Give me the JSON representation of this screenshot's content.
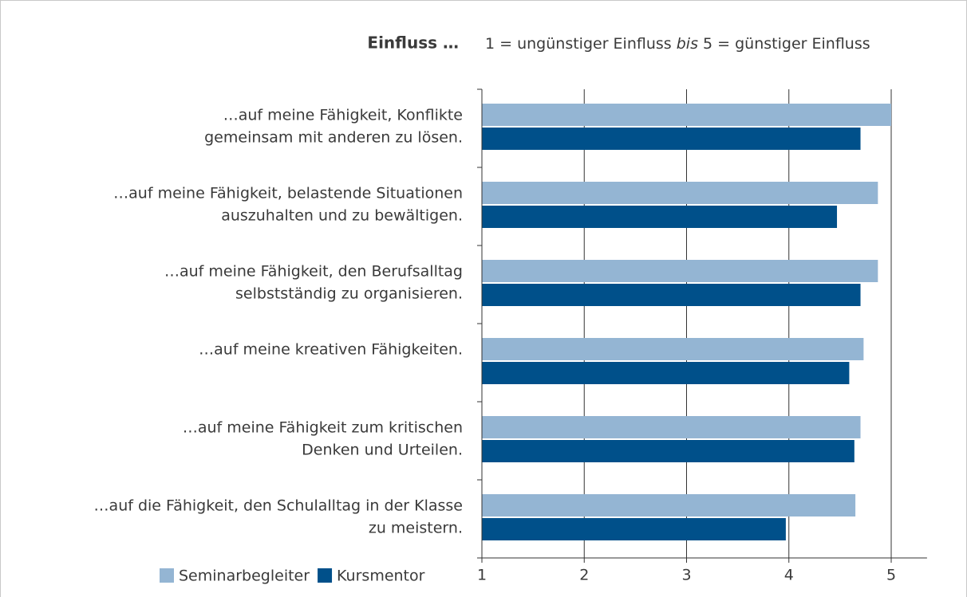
{
  "chart_data": {
    "type": "hbar",
    "title": "Einfluss …",
    "subtitle": [
      "1 = ungünstiger Einfluss",
      "bis",
      "5 =  günstiger Einfluss"
    ],
    "categories": [
      [
        "…auf meine Fähigkeit, Konflikte",
        "gemeinsam mit anderen zu lösen."
      ],
      [
        "…auf meine Fähigkeit, belastende Situationen",
        "auszuhalten und zu bewältigen."
      ],
      [
        "…auf meine Fähigkeit, den Berufsalltag",
        "selbstständig zu organisieren."
      ],
      [
        "…auf meine kreativen Fähigkeiten."
      ],
      [
        "…auf meine Fähigkeit zum kritischen",
        "Denken und Urteilen."
      ],
      [
        "…auf die Fähigkeit, den Schulalltag in der Klasse",
        "zu meistern."
      ]
    ],
    "series": [
      {
        "name": "Seminarbegleiter",
        "color": "#94b5d3",
        "values": [
          5.0,
          4.87,
          4.87,
          4.73,
          4.7,
          4.65
        ]
      },
      {
        "name": "Kursmentor",
        "color": "#00508a",
        "values": [
          4.7,
          4.47,
          4.7,
          4.59,
          4.64,
          3.97
        ]
      }
    ],
    "xlim": [
      1,
      5.35
    ],
    "xticks": [
      1,
      2,
      3,
      4,
      5
    ],
    "grid": true,
    "legend": "bottom-left"
  }
}
